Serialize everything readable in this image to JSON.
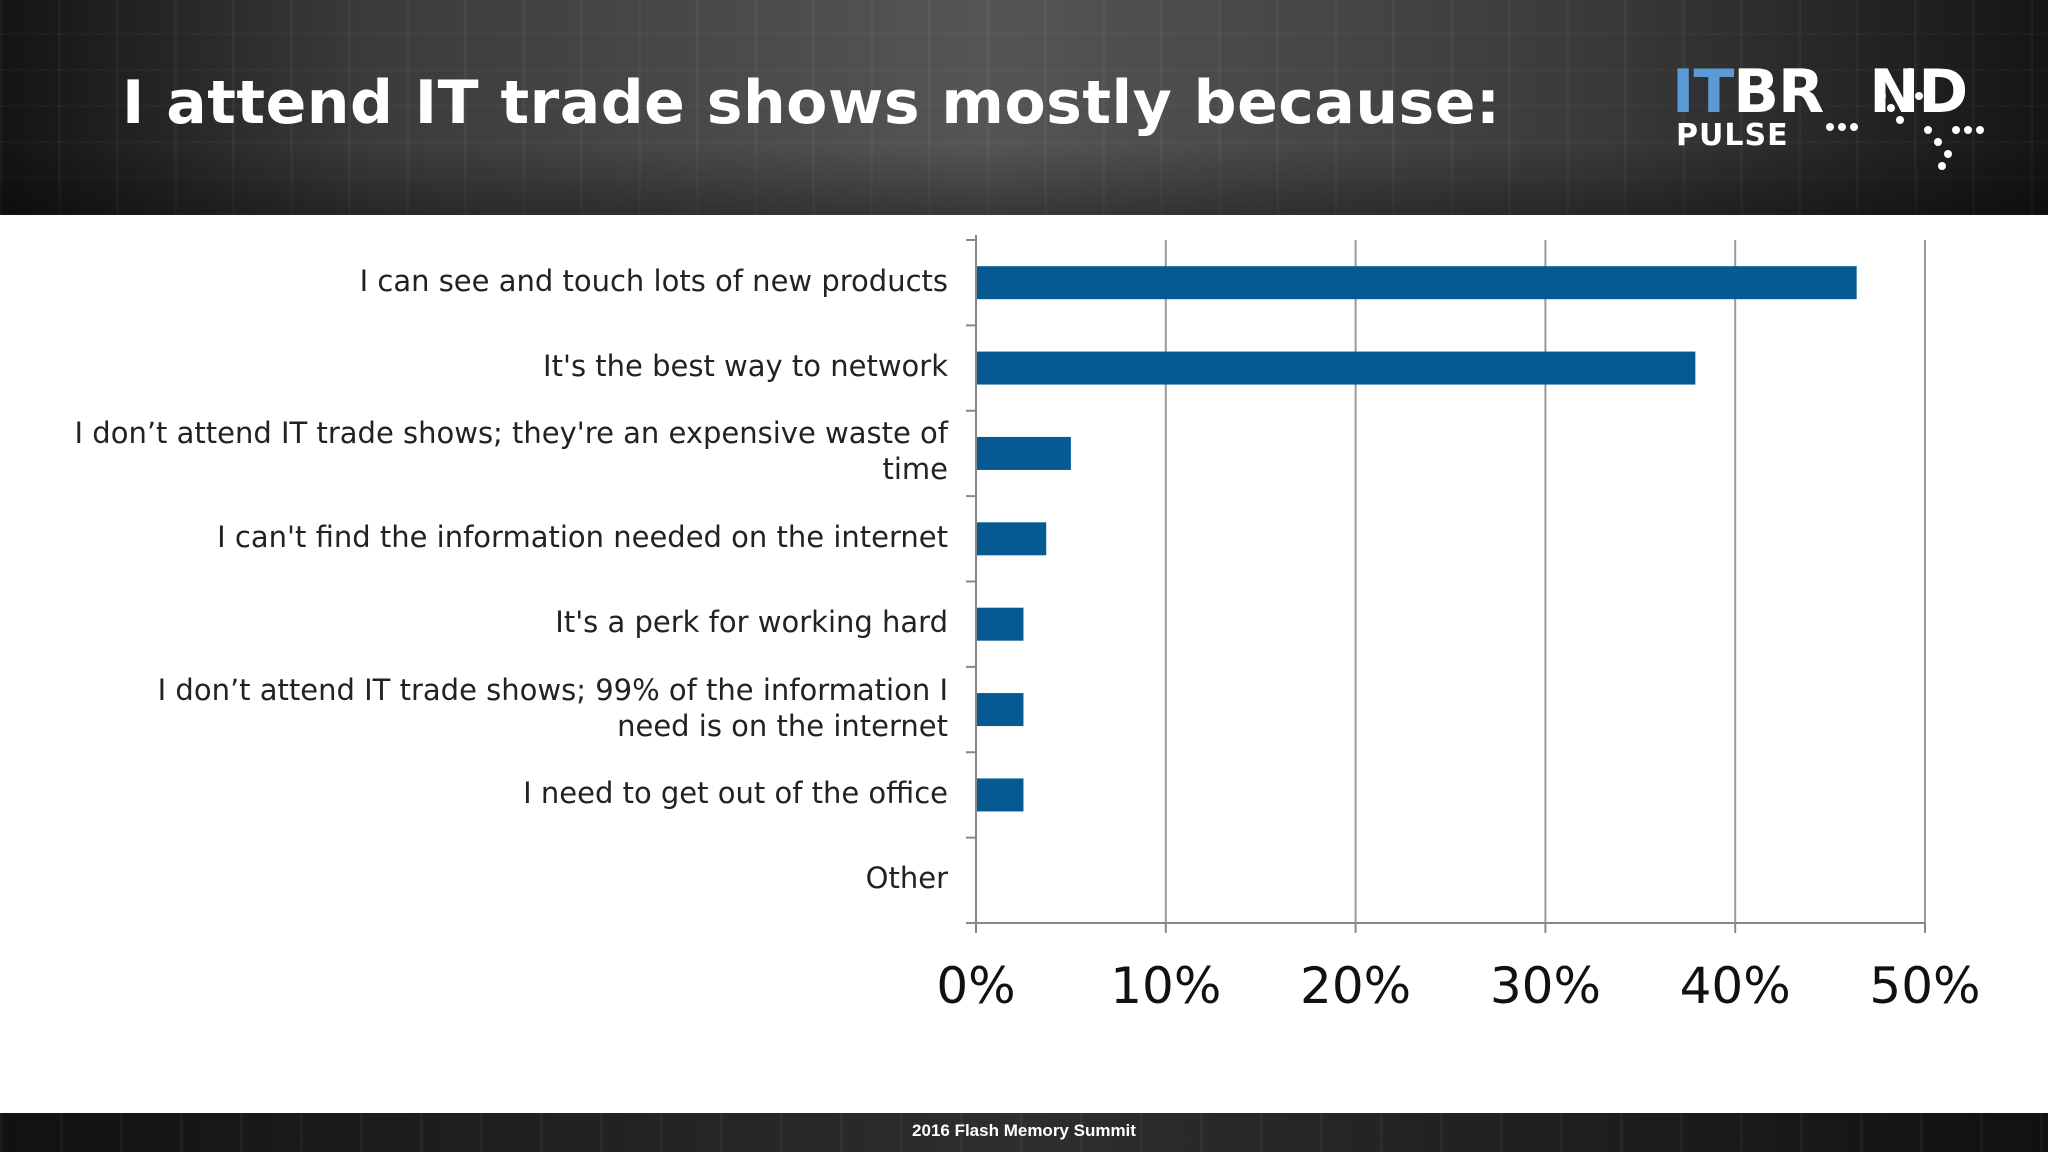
{
  "slide": {
    "title": "I attend IT trade shows mostly because:",
    "footer": "2016 Flash Memory Summit"
  },
  "logo": {
    "part1": "IT",
    "part2": "BR",
    "part3": "ND",
    "part4": "PULSE"
  },
  "colors": {
    "bar": "#065a92",
    "axis": "#888888",
    "grid": "#9a9a9a",
    "text": "#222222"
  },
  "chart_data": {
    "type": "bar",
    "orientation": "horizontal",
    "categories": [
      "I can see and touch lots of new products",
      "It's the best way to network",
      "I don’t attend IT trade shows; they're an expensive waste of\ntime",
      "I can't find the information needed on the internet",
      "It's a perk for working hard",
      "I don’t attend IT trade shows; 99% of the information I\nneed is on the internet",
      "I need to get out of the office",
      "Other"
    ],
    "values": [
      0.464,
      0.379,
      0.05,
      0.037,
      0.025,
      0.025,
      0.025,
      0
    ],
    "xlim": [
      0,
      0.5
    ],
    "x_ticks": [
      "0%",
      "10%",
      "20%",
      "30%",
      "40%",
      "50%"
    ],
    "grid": "vertical",
    "legend": "none"
  }
}
